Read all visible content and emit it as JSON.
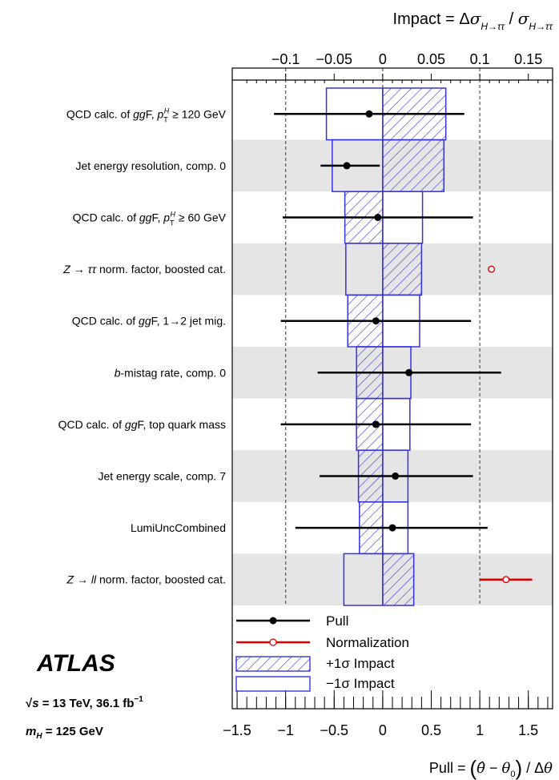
{
  "chart_data": {
    "type": "ranking",
    "experiment": "ATLAS",
    "energy_label": "√s = 13 TeV, 36.1 fb⁻¹",
    "mass_label": "m_H = 125 GeV",
    "top_axis": {
      "label": "Impact = Δσ_{H→ττ} / σ_{H→ττ}",
      "range": [
        -0.155,
        0.175
      ],
      "ticks": [
        -0.1,
        -0.05,
        0,
        0.05,
        0.1,
        0.15
      ],
      "tick_labels": [
        "−0.1",
        "−0.05",
        "0",
        "0.05",
        "0.1",
        "0.15"
      ]
    },
    "bottom_axis": {
      "label": "Pull = (θ̂ − θ₀) / Δθ",
      "range": [
        -1.55,
        1.75
      ],
      "ticks": [
        -1.5,
        -1,
        -0.5,
        0,
        0.5,
        1,
        1.5
      ],
      "tick_labels": [
        "−1.5",
        "−1",
        "−0.5",
        "0",
        "0.5",
        "1",
        "1.5"
      ],
      "dashed_lines": [
        -1,
        0,
        1
      ]
    },
    "nuisance_parameters": [
      {
        "name": "QCD calc. of ggF, pT^H ≥ 120 GeV",
        "type": "pull",
        "pull": -0.14,
        "err_lo": 0.98,
        "err_hi": 0.98,
        "impact_up": 0.065,
        "impact_down": -0.058
      },
      {
        "name": "Jet energy resolution, comp. 0",
        "type": "pull",
        "pull": -0.37,
        "err_lo": 0.27,
        "err_hi": 0.34,
        "impact_up": 0.063,
        "impact_down": -0.052
      },
      {
        "name": "QCD calc. of ggF, pT^H ≥ 60 GeV",
        "type": "pull",
        "pull": -0.05,
        "err_lo": 0.98,
        "err_hi": 0.98,
        "impact_up": -0.039,
        "impact_down": 0.041
      },
      {
        "name": "Z → ττ norm. factor, boosted cat.",
        "type": "norm",
        "pull": 1.12,
        "err_lo": 0.02,
        "err_hi": 0.02,
        "impact_up": 0.04,
        "impact_down": -0.038
      },
      {
        "name": "QCD calc. of ggF, 1→2 jet mig.",
        "type": "pull",
        "pull": -0.07,
        "err_lo": 0.98,
        "err_hi": 0.98,
        "impact_up": -0.036,
        "impact_down": 0.038
      },
      {
        "name": "b-mistag rate, comp. 0",
        "type": "pull",
        "pull": 0.27,
        "err_lo": 0.94,
        "err_hi": 0.95,
        "impact_up": -0.027,
        "impact_down": 0.029
      },
      {
        "name": "QCD calc. of ggF, top quark mass",
        "type": "pull",
        "pull": -0.07,
        "err_lo": 0.98,
        "err_hi": 0.98,
        "impact_up": -0.027,
        "impact_down": 0.028
      },
      {
        "name": "Jet energy scale, comp. 7",
        "type": "pull",
        "pull": 0.13,
        "err_lo": 0.78,
        "err_hi": 0.8,
        "impact_up": -0.025,
        "impact_down": 0.026
      },
      {
        "name": "LumiUncCombined",
        "type": "pull",
        "pull": 0.1,
        "err_lo": 1.0,
        "err_hi": 0.98,
        "impact_up": -0.024,
        "impact_down": 0.026
      },
      {
        "name": "Z → ll norm. factor, boosted cat.",
        "type": "norm",
        "pull": 1.27,
        "err_lo": 0.27,
        "err_hi": 0.27,
        "impact_up": 0.032,
        "impact_down": -0.04
      }
    ],
    "legend": [
      "Pull",
      "Normalization",
      "+1σ Impact",
      "−1σ Impact"
    ],
    "colors": {
      "pull": "#000000",
      "normalization": "#e00000",
      "impact": "#3333dd",
      "band": "#e5e5e5"
    }
  }
}
